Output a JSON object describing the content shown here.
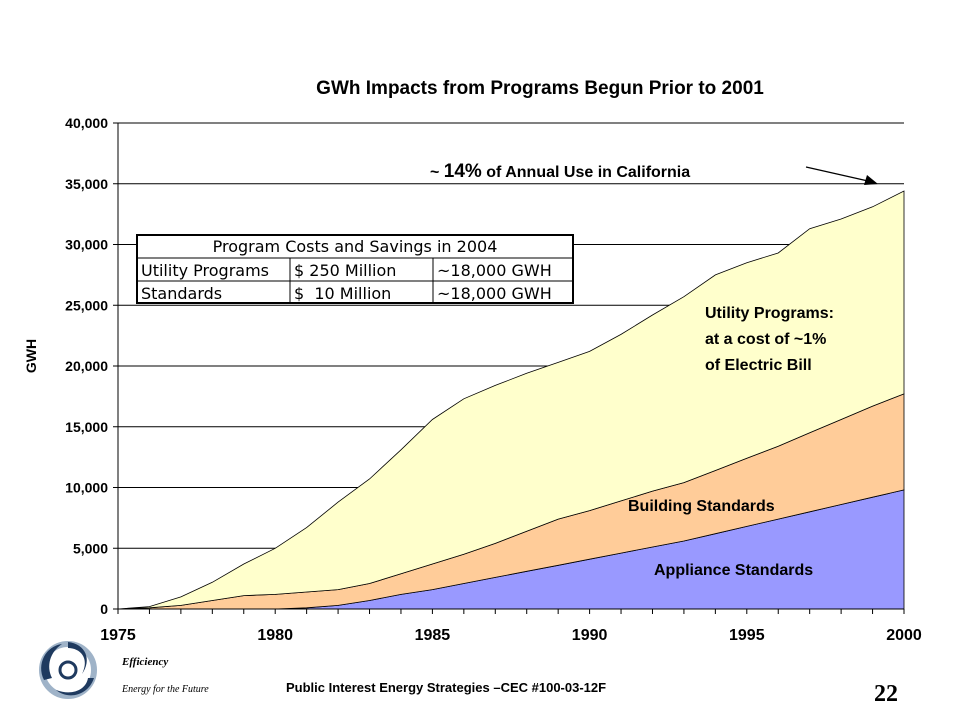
{
  "chart_data": {
    "type": "area",
    "stacked": true,
    "title": "GWh Impacts from Programs Begun Prior to 2001",
    "ylabel": "GWH",
    "xlabel": "",
    "xlim": [
      1975,
      2000
    ],
    "ylim": [
      0,
      40000
    ],
    "grid": true,
    "x_ticks": [
      1975,
      1980,
      1985,
      1990,
      1995,
      2000
    ],
    "y_ticks": [
      0,
      5000,
      10000,
      15000,
      20000,
      25000,
      30000,
      35000,
      40000
    ],
    "x_tick_labels": [
      "1975",
      "1980",
      "1985",
      "1990",
      "1995",
      "2000"
    ],
    "y_tick_labels": [
      "0",
      "5,000",
      "10,000",
      "15,000",
      "20,000",
      "25,000",
      "30,000",
      "35,000",
      "40,000"
    ],
    "x": [
      1975,
      1976,
      1977,
      1978,
      1979,
      1980,
      1981,
      1982,
      1983,
      1984,
      1985,
      1986,
      1987,
      1988,
      1989,
      1990,
      1991,
      1992,
      1993,
      1994,
      1995,
      1996,
      1997,
      1998,
      1999,
      2000
    ],
    "series": [
      {
        "name": "Appliance Standards",
        "color": "#9999ff",
        "values": [
          0,
          0,
          0,
          0,
          0,
          0,
          100,
          300,
          700,
          1200,
          1600,
          2100,
          2600,
          3100,
          3600,
          4100,
          4600,
          5100,
          5600,
          6200,
          6800,
          7400,
          8000,
          8600,
          9200,
          9800
        ]
      },
      {
        "name": "Building Standards",
        "color": "#ffcc99",
        "values": [
          0,
          100,
          300,
          700,
          1100,
          1200,
          1300,
          1300,
          1400,
          1700,
          2100,
          2400,
          2800,
          3300,
          3800,
          4000,
          4300,
          4600,
          4800,
          5200,
          5600,
          6000,
          6500,
          7000,
          7500,
          7900
        ]
      },
      {
        "name": "Utility Programs",
        "color": "#ffffcc",
        "values": [
          0,
          100,
          700,
          1500,
          2600,
          3800,
          5300,
          7200,
          8600,
          10200,
          11900,
          12800,
          13000,
          13000,
          12900,
          13100,
          13700,
          14500,
          15300,
          16100,
          16100,
          15900,
          16800,
          16500,
          16400,
          16700
        ]
      }
    ],
    "annotations": {
      "utility": [
        "Utility Programs:",
        "at a cost of ~1%",
        "of Electric Bill"
      ],
      "building": "Building Standards",
      "appliance": "Appliance Standards",
      "total_prefix": "~ ",
      "total_pct": "14%",
      "total_suffix": " of Annual Use in California"
    },
    "inset_table": {
      "title": "Program Costs and Savings in 2004",
      "rows": [
        [
          "Utility Programs",
          "$ 250 Million",
          "~18,000 GWH"
        ],
        [
          "Standards",
          "$  10 Million",
          "~18,000 GWH"
        ]
      ]
    }
  },
  "footer": {
    "logo_name": "Efficiency",
    "logo_tagline": "Energy for the Future",
    "citation": "Public Interest Energy Strategies –CEC #100-03-12F",
    "page_number": "22"
  }
}
